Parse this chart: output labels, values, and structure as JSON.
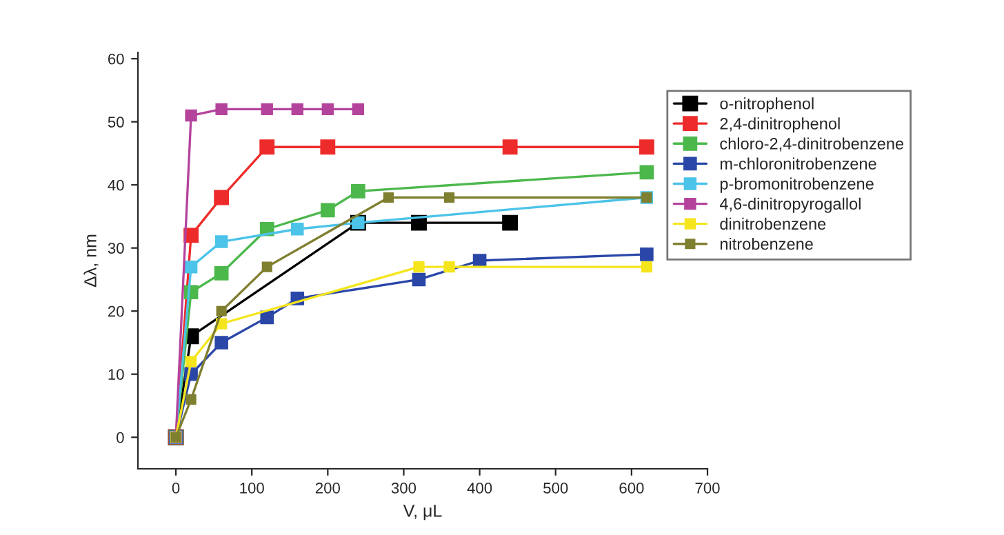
{
  "chart_data": {
    "type": "line",
    "xlabel": "V, μL",
    "ylabel": "Δλ, nm",
    "xlim": [
      -50,
      700
    ],
    "ylim": [
      -5,
      61
    ],
    "xticks": [
      0,
      100,
      200,
      300,
      400,
      500,
      600,
      700
    ],
    "yticks": [
      0,
      10,
      20,
      30,
      40,
      50,
      60
    ],
    "grid": false,
    "legend": "top right",
    "marker": "square",
    "line_style": "solid",
    "series": [
      {
        "name": "o-nitrophenol",
        "color": "#000000",
        "x": [
          0,
          20,
          240,
          320,
          440
        ],
        "values": [
          0,
          16,
          34,
          34,
          34
        ]
      },
      {
        "name": "2,4-dinitrophenol",
        "color": "#ee2b2b",
        "x": [
          0,
          20,
          60,
          120,
          200,
          440,
          620
        ],
        "values": [
          0,
          32,
          38,
          46,
          46,
          46,
          46
        ]
      },
      {
        "name": "chloro-2,4-dinitrobenzene",
        "color": "#4cb84c",
        "x": [
          0,
          20,
          60,
          120,
          200,
          240,
          620
        ],
        "values": [
          0,
          23,
          26,
          33,
          36,
          39,
          42
        ]
      },
      {
        "name": "m-chloronitrobenzene",
        "color": "#2a47a8",
        "x": [
          0,
          20,
          60,
          120,
          160,
          320,
          400,
          620
        ],
        "values": [
          0,
          10,
          15,
          19,
          22,
          25,
          28,
          29
        ]
      },
      {
        "name": "p-bromonitrobenzene",
        "color": "#4cc3e8",
        "x": [
          0,
          20,
          60,
          160,
          240,
          620
        ],
        "values": [
          0,
          27,
          31,
          33,
          34,
          38
        ]
      },
      {
        "name": "4,6-dinitropyrogallol",
        "color": "#b4439c",
        "x": [
          0,
          20,
          60,
          120,
          160,
          200,
          240
        ],
        "values": [
          0,
          51,
          52,
          52,
          52,
          52,
          52
        ]
      },
      {
        "name": "dinitrobenzene",
        "color": "#f5e51c",
        "x": [
          0,
          20,
          60,
          320,
          360,
          620
        ],
        "values": [
          0,
          12,
          18,
          27,
          27,
          27
        ]
      },
      {
        "name": "nitrobenzene",
        "color": "#7f7f30",
        "x": [
          0,
          20,
          60,
          120,
          280,
          360,
          620
        ],
        "values": [
          0,
          6,
          20,
          27,
          38,
          38,
          38
        ]
      }
    ]
  }
}
